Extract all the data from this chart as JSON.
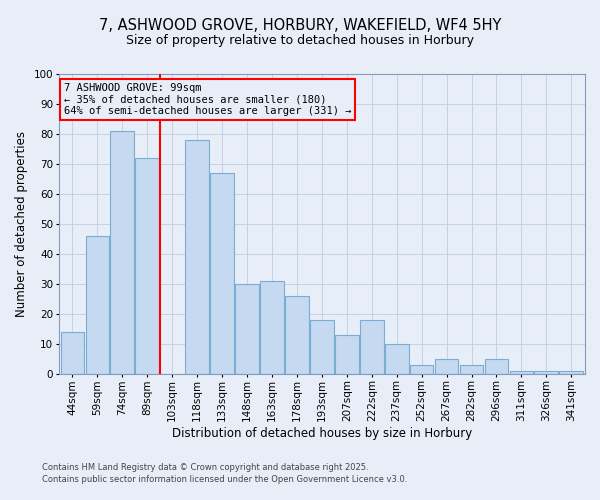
{
  "title1": "7, ASHWOOD GROVE, HORBURY, WAKEFIELD, WF4 5HY",
  "title2": "Size of property relative to detached houses in Horbury",
  "xlabel": "Distribution of detached houses by size in Horbury",
  "ylabel": "Number of detached properties",
  "categories": [
    "44sqm",
    "59sqm",
    "74sqm",
    "89sqm",
    "103sqm",
    "118sqm",
    "133sqm",
    "148sqm",
    "163sqm",
    "178sqm",
    "193sqm",
    "207sqm",
    "222sqm",
    "237sqm",
    "252sqm",
    "267sqm",
    "282sqm",
    "296sqm",
    "311sqm",
    "326sqm",
    "341sqm"
  ],
  "values": [
    14,
    46,
    81,
    72,
    0,
    78,
    67,
    30,
    31,
    26,
    18,
    13,
    18,
    10,
    3,
    5,
    3,
    5,
    1,
    1,
    1
  ],
  "bar_color": "#c5d9f0",
  "bar_edge_color": "#7aadd4",
  "red_line_index": 4,
  "ylim": [
    0,
    100
  ],
  "yticks": [
    0,
    10,
    20,
    30,
    40,
    50,
    60,
    70,
    80,
    90,
    100
  ],
  "annotation_title": "7 ASHWOOD GROVE: 99sqm",
  "annotation_line1": "← 35% of detached houses are smaller (180)",
  "annotation_line2": "64% of semi-detached houses are larger (331) →",
  "footer1": "Contains HM Land Registry data © Crown copyright and database right 2025.",
  "footer2": "Contains public sector information licensed under the Open Government Licence v3.0.",
  "background_color": "#e8eef8",
  "grid_color": "#c0cce0",
  "title_fontsize": 10.5,
  "subtitle_fontsize": 9,
  "axis_label_fontsize": 8.5,
  "tick_fontsize": 7.5,
  "footer_fontsize": 6,
  "annotation_fontsize": 7.5
}
